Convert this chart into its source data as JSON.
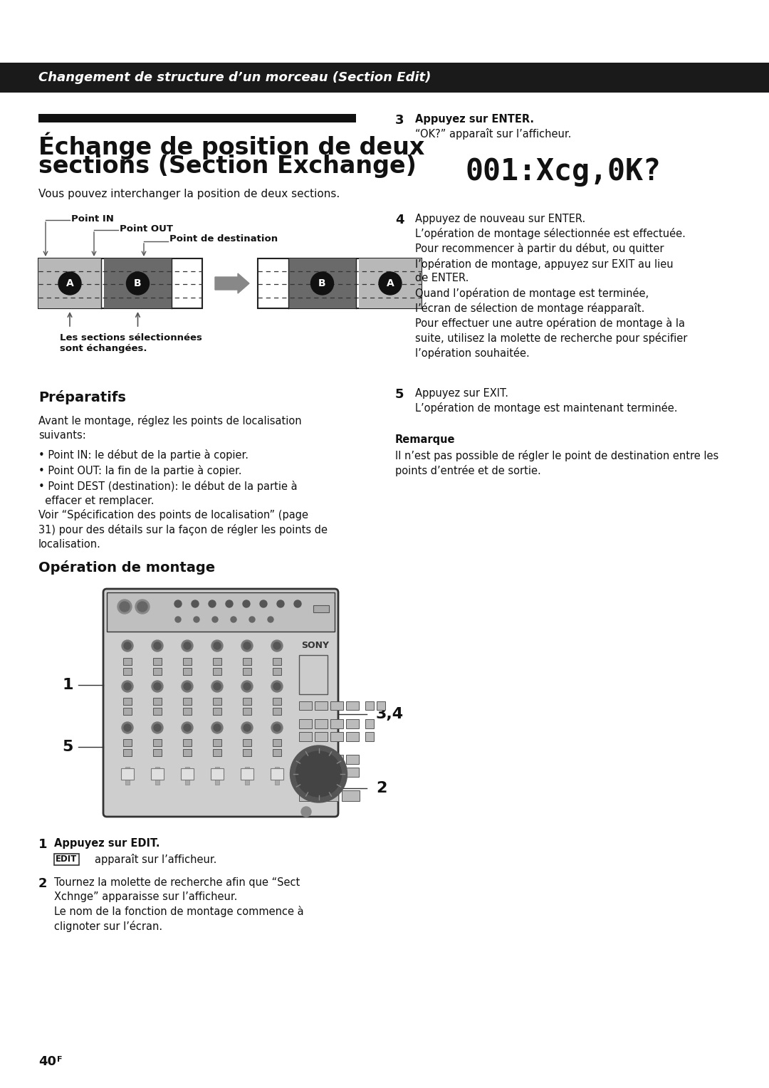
{
  "bg_color": "#ffffff",
  "header_bg": "#1a1a1a",
  "header_text": "Changement de structure d’un morceau (Section Edit)",
  "header_text_color": "#ffffff",
  "title_line1": "Échange de position de deux",
  "title_line2": "sections (Section Exchange)",
  "subtitle": "Vous pouvez interchanger la position de deux sections.",
  "diagram_caption": "Les sections sélectionnées\nsont échangées.",
  "section_preparatifs": "Préparatifs",
  "section_operation": "Opération de montage",
  "preparatifs_intro": "Avant le montage, réglez les points de localisation\nsuivants:",
  "prep_bullet1": "• Point IN: le début de la partie à copier.",
  "prep_bullet2": "• Point OUT: la fin de la partie à copier.",
  "prep_bullet3": "• Point DEST (destination): le début de la partie à\n  effacer et remplacer.",
  "prep_see": "Voir “Spécification des points de localisation” (page\n31) pour des détails sur la façon de régler les points de\nlocalisation.",
  "step1_num": "1",
  "step1_text_bold": "Appuyez sur EDIT.",
  "step1_text_norm": "apparaît sur l’afficheur.",
  "step1_edit_box": "EDIT",
  "step2_num": "2",
  "step2_text": "Tournez la molette de recherche afin que “Sect\nXchnge” apparaisse sur l’afficheur.\nLe nom de la fonction de montage commence à\nclignoter sur l’écran.",
  "step3_num": "3",
  "step3_text": "Appuyez sur ENTER.\n“OK?” apparaît sur l’afficheur.",
  "lcd_text": "001:Xcg,0K?",
  "step4_num": "4",
  "step4_text": "Appuyez de nouveau sur ENTER.\nL’opération de montage sélectionnée est effectuée.\nPour recommencer à partir du début, ou quitter\nl’opération de montage, appuyez sur EXIT au lieu\nde ENTER.\nQuand l’opération de montage est terminée,\nl’écran de sélection de montage réapparaît.\nPour effectuer une autre opération de montage à la\nsuite, utilisez la molette de recherche pour spécifier\nl’opération souhaitée.",
  "step5_num": "5",
  "step5_text": "Appuyez sur EXIT.\nL’opération de montage est maintenant terminée.",
  "remarque_title": "Remarque",
  "remarque_text": "Il n’est pas possible de régler le point de destination entre les\npoints d’entrée et de sortie.",
  "page_num": "40",
  "page_super": "F"
}
